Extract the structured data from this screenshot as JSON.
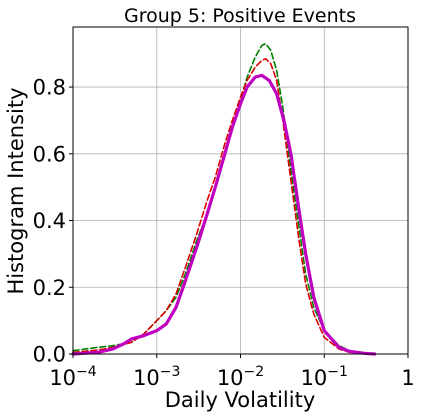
{
  "chart_data": {
    "type": "line",
    "title": "Group 5: Positive Events",
    "xlabel": "Daily Volatility",
    "ylabel": "Histogram Intensity",
    "x_scale": "log",
    "xlim": [
      0.0001,
      1
    ],
    "ylim": [
      0,
      0.98
    ],
    "grid": true,
    "yticks": [
      {
        "value": 0.0,
        "label": "0.0"
      },
      {
        "value": 0.2,
        "label": "0.2"
      },
      {
        "value": 0.4,
        "label": "0.4"
      },
      {
        "value": 0.6,
        "label": "0.6"
      },
      {
        "value": 0.8,
        "label": "0.8"
      }
    ],
    "xticks": [
      {
        "value": 0.0001,
        "base": "10",
        "exp": "−4"
      },
      {
        "value": 0.001,
        "base": "10",
        "exp": "−3"
      },
      {
        "value": 0.01,
        "base": "10",
        "exp": "−2"
      },
      {
        "value": 0.1,
        "base": "10",
        "exp": "−1"
      },
      {
        "value": 1,
        "base": "1",
        "exp": ""
      }
    ],
    "series": [
      {
        "color": "#008000",
        "dash": "6,3",
        "width": 1.6,
        "points": [
          [
            0.0001,
            0.01
          ],
          [
            0.0002,
            0.02
          ],
          [
            0.0003,
            0.025
          ],
          [
            0.0005,
            0.035
          ],
          [
            0.0007,
            0.06
          ],
          [
            0.001,
            0.1
          ],
          [
            0.0013,
            0.13
          ],
          [
            0.0017,
            0.17
          ],
          [
            0.0022,
            0.24
          ],
          [
            0.003,
            0.34
          ],
          [
            0.004,
            0.42
          ],
          [
            0.005,
            0.5
          ],
          [
            0.0065,
            0.6
          ],
          [
            0.008,
            0.68
          ],
          [
            0.01,
            0.76
          ],
          [
            0.012,
            0.83
          ],
          [
            0.015,
            0.89
          ],
          [
            0.018,
            0.925
          ],
          [
            0.02,
            0.93
          ],
          [
            0.023,
            0.91
          ],
          [
            0.027,
            0.85
          ],
          [
            0.032,
            0.74
          ],
          [
            0.04,
            0.55
          ],
          [
            0.05,
            0.38
          ],
          [
            0.06,
            0.24
          ],
          [
            0.075,
            0.14
          ],
          [
            0.1,
            0.07
          ],
          [
            0.15,
            0.025
          ],
          [
            0.2,
            0.01
          ],
          [
            0.3,
            0.002
          ]
        ]
      },
      {
        "color": "#e00000",
        "dash": "6,3",
        "width": 1.6,
        "points": [
          [
            0.0001,
            0.005
          ],
          [
            0.0002,
            0.012
          ],
          [
            0.0003,
            0.02
          ],
          [
            0.0005,
            0.035
          ],
          [
            0.0007,
            0.06
          ],
          [
            0.001,
            0.1
          ],
          [
            0.0013,
            0.13
          ],
          [
            0.0017,
            0.18
          ],
          [
            0.0022,
            0.26
          ],
          [
            0.003,
            0.36
          ],
          [
            0.004,
            0.46
          ],
          [
            0.005,
            0.53
          ],
          [
            0.0065,
            0.63
          ],
          [
            0.008,
            0.7
          ],
          [
            0.01,
            0.77
          ],
          [
            0.012,
            0.82
          ],
          [
            0.015,
            0.86
          ],
          [
            0.018,
            0.88
          ],
          [
            0.02,
            0.885
          ],
          [
            0.023,
            0.87
          ],
          [
            0.027,
            0.82
          ],
          [
            0.032,
            0.7
          ],
          [
            0.04,
            0.52
          ],
          [
            0.05,
            0.34
          ],
          [
            0.06,
            0.21
          ],
          [
            0.075,
            0.12
          ],
          [
            0.1,
            0.05
          ],
          [
            0.15,
            0.015
          ],
          [
            0.2,
            0.005
          ],
          [
            0.3,
            0.001
          ]
        ]
      },
      {
        "color": "#c000c0",
        "dash": "",
        "width": 3.2,
        "points": [
          [
            0.0001,
            0.0
          ],
          [
            0.0002,
            0.005
          ],
          [
            0.0003,
            0.015
          ],
          [
            0.0004,
            0.03
          ],
          [
            0.0005,
            0.045
          ],
          [
            0.0007,
            0.055
          ],
          [
            0.001,
            0.07
          ],
          [
            0.0013,
            0.09
          ],
          [
            0.0017,
            0.14
          ],
          [
            0.0022,
            0.22
          ],
          [
            0.003,
            0.32
          ],
          [
            0.004,
            0.42
          ],
          [
            0.005,
            0.5
          ],
          [
            0.0065,
            0.6
          ],
          [
            0.008,
            0.68
          ],
          [
            0.01,
            0.75
          ],
          [
            0.012,
            0.8
          ],
          [
            0.015,
            0.83
          ],
          [
            0.018,
            0.835
          ],
          [
            0.022,
            0.82
          ],
          [
            0.027,
            0.78
          ],
          [
            0.033,
            0.7
          ],
          [
            0.04,
            0.6
          ],
          [
            0.05,
            0.43
          ],
          [
            0.06,
            0.3
          ],
          [
            0.075,
            0.17
          ],
          [
            0.1,
            0.07
          ],
          [
            0.15,
            0.02
          ],
          [
            0.2,
            0.008
          ],
          [
            0.3,
            0.002
          ],
          [
            0.4,
            0.0
          ]
        ]
      }
    ]
  }
}
